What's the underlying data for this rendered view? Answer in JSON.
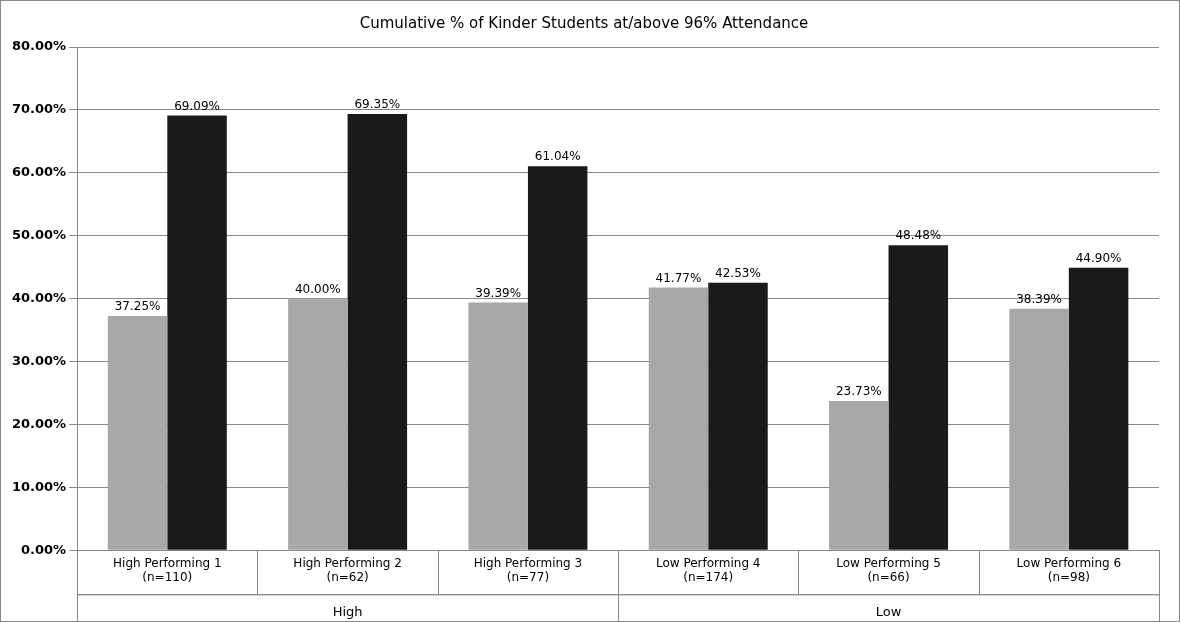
{
  "chart_data": {
    "type": "bar",
    "title": "Cumulative % of Kinder Students at/above 96% Attendance",
    "categories": [
      "High Performing 1\n(n=110)",
      "High Performing 2\n(n=62)",
      "High Performing 3\n(n=77)",
      "Low Performing 4\n(n=174)",
      "Low Performing 5\n(n=66)",
      "Low Performing 6\n(n=98)"
    ],
    "series": [
      {
        "color": "#a8a8a8",
        "values": [
          37.25,
          40.0,
          39.39,
          41.77,
          23.73,
          38.39
        ],
        "value_labels": [
          "37.25%",
          "40.00%",
          "39.39%",
          "41.77%",
          "23.73%",
          "38.39%"
        ]
      },
      {
        "color": "#1a1a1a",
        "values": [
          69.09,
          69.35,
          61.04,
          42.53,
          48.48,
          44.9
        ],
        "value_labels": [
          "69.09%",
          "69.35%",
          "61.04%",
          "42.53%",
          "48.48%",
          "44.90%"
        ]
      }
    ],
    "ylim": [
      0,
      80
    ],
    "yticks": [
      {
        "value": 0,
        "label": "0.00%"
      },
      {
        "value": 10,
        "label": "10.00%"
      },
      {
        "value": 20,
        "label": "20.00%"
      },
      {
        "value": 30,
        "label": "30.00%"
      },
      {
        "value": 40,
        "label": "40.00%"
      },
      {
        "value": 50,
        "label": "50.00%"
      },
      {
        "value": 60,
        "label": "60.00%"
      },
      {
        "value": 70,
        "label": "70.00%"
      },
      {
        "value": 80,
        "label": "80.00%"
      }
    ],
    "grid": "y",
    "legend": false,
    "annotations": [
      "High",
      "Low"
    ]
  }
}
